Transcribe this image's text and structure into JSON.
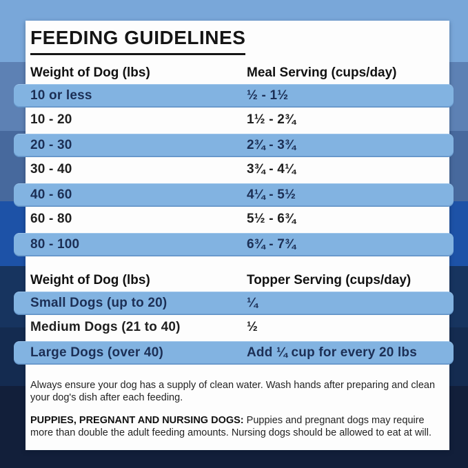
{
  "title": "FEEDING GUIDELINES",
  "meal_table": {
    "col1_header": "Weight of Dog (lbs)",
    "col2_header": "Meal Serving (cups/day)",
    "rows": [
      {
        "weight": "10 or less",
        "serving": "½ - 1½",
        "highlight": true
      },
      {
        "weight": "10 - 20",
        "serving": "1½ - 2¾",
        "highlight": false
      },
      {
        "weight": "20 - 30",
        "serving": "2¾ - 3¾",
        "highlight": true
      },
      {
        "weight": "30 - 40",
        "serving": "3¾ - 4¼",
        "highlight": false
      },
      {
        "weight": "40 - 60",
        "serving": "4¼ - 5½",
        "highlight": true
      },
      {
        "weight": "60 - 80",
        "serving": "5½ - 6¾",
        "highlight": false
      },
      {
        "weight": "80 - 100",
        "serving": "6¾ - 7¾",
        "highlight": true
      }
    ]
  },
  "topper_table": {
    "col1_header": "Weight of Dog (lbs)",
    "col2_header": "Topper Serving (cups/day)",
    "rows": [
      {
        "weight": "Small Dogs (up to 20)",
        "serving": "¼",
        "highlight": true
      },
      {
        "weight": "Medium Dogs (21 to 40)",
        "serving": "½",
        "highlight": false
      },
      {
        "weight": "Large Dogs (over 40)",
        "serving": "Add ¼ cup for every 20 lbs",
        "highlight": true
      }
    ]
  },
  "notes": {
    "water_note": "Always ensure your dog has a supply of clean water. Wash hands after preparing and clean your dog's dish after each feeding.",
    "puppies_label": "PUPPIES, PREGNANT AND NURSING DOGS:",
    "puppies_text": " Puppies and pregnant dogs may require more than double the adult feeding amounts. Nursing dogs should be allowed to eat at will."
  },
  "colors": {
    "highlight_row": "#82b3e1",
    "highlight_text": "#1c2f55",
    "card_background": "#fdfdfd",
    "title_text": "#151515",
    "background_stripes": [
      "#79a7d9",
      "#5d81b4",
      "#47699d",
      "#1d52a7",
      "#17345f",
      "#142b50",
      "#121f3a"
    ]
  }
}
